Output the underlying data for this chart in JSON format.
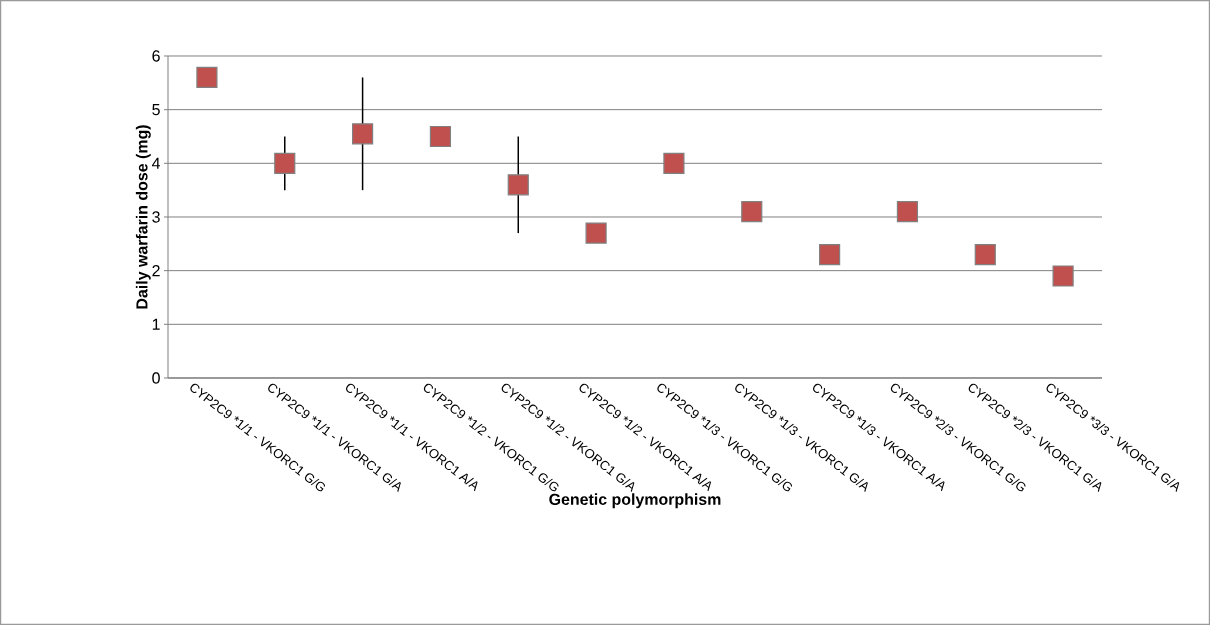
{
  "chart_data": {
    "type": "scatter",
    "xlabel": "Genetic polymorphism",
    "ylabel": "Daily warfarin dose  (mg)",
    "categories": [
      "CYP2C9 *1/1 - VKORC1 G/G",
      "CYP2C9 *1/1 - VKORC1 G/A",
      "CYP2C9 *1/1 - VKORC1 A/A",
      "CYP2C9 *1/2 - VKORC1 G/G",
      "CYP2C9 *1/2 - VKORC1 G/A",
      "CYP2C9 *1/2 - VKORC1 A/A",
      "CYP2C9 *1/3 - VKORC1 G/G",
      "CYP2C9 *1/3 - VKORC1 G/A",
      "CYP2C9 *1/3 - VKORC1 A/A",
      "CYP2C9 *2/3 - VKORC1 G/G",
      "CYP2C9 *2/3 - VKORC1 G/A",
      "CYP2C9 *3/3 - VKORC1 G/A"
    ],
    "values": [
      5.6,
      4.0,
      4.55,
      4.5,
      3.6,
      2.7,
      4.0,
      3.1,
      2.3,
      3.1,
      2.3,
      1.9
    ],
    "errors": [
      null,
      [
        3.5,
        4.5
      ],
      [
        3.5,
        5.6
      ],
      null,
      [
        2.7,
        4.5
      ],
      null,
      null,
      null,
      null,
      null,
      null,
      null
    ],
    "color": "#c0504d",
    "marker": "square",
    "grid": "y",
    "ylim": [
      0,
      6
    ],
    "yticks": [
      0,
      1,
      2,
      3,
      4,
      5,
      6
    ]
  }
}
